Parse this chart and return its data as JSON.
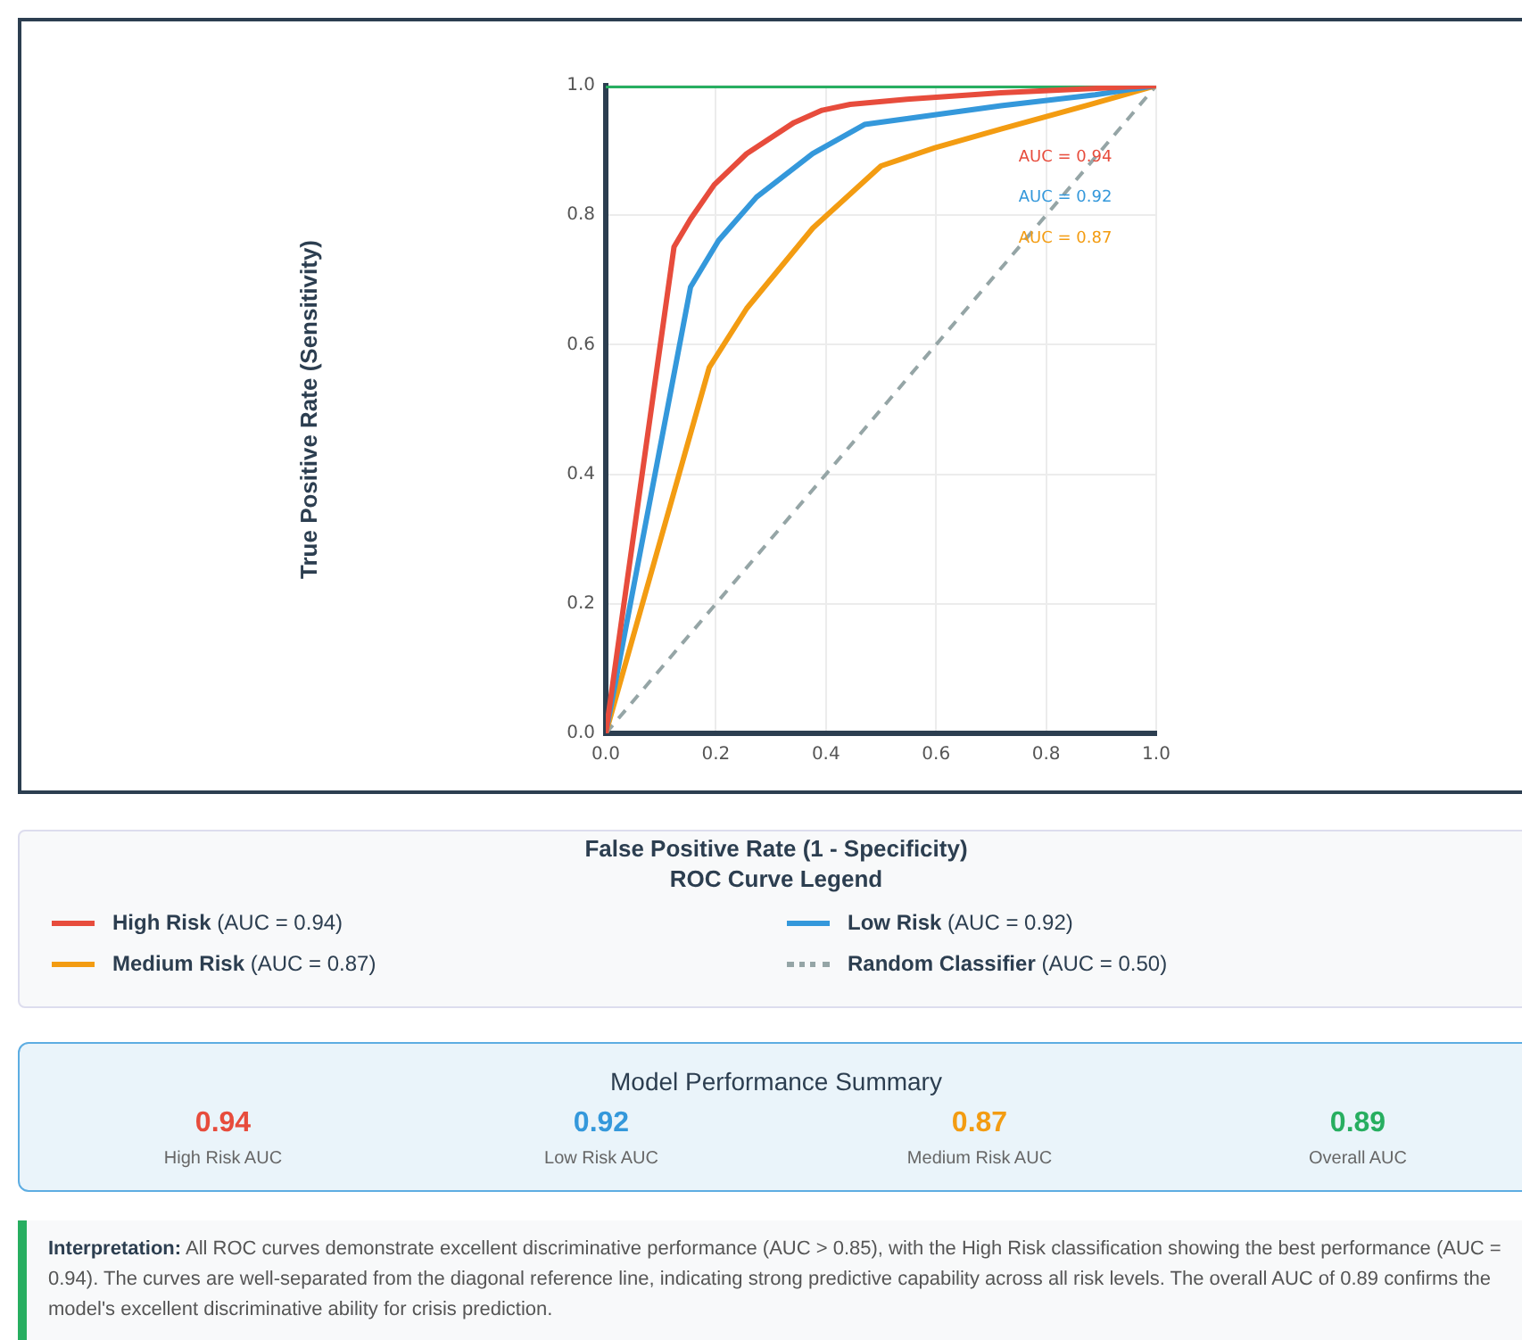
{
  "chart_data": [
    {
      "type": "line",
      "xlabel": "False Positive Rate (1 - Specificity)",
      "ylabel": "True Positive Rate (Sensitivity)",
      "legend_title": "ROC Curve Legend",
      "legend": "bottom",
      "grid": true,
      "marker": "none",
      "xlim": [
        0,
        1
      ],
      "ylim": [
        0,
        1
      ],
      "xticks": [
        {
          "value": 0,
          "label": "0.0"
        },
        0.2,
        0.4,
        0.6,
        0.8,
        {
          "value": 1,
          "label": "1.0"
        }
      ],
      "yticks": [
        {
          "value": 0,
          "label": "0.0"
        },
        0.2,
        0.4,
        0.6,
        0.8,
        {
          "value": 1,
          "label": "1.0"
        }
      ],
      "series": [
        {
          "name": "High Risk (AUC = 0.94)",
          "color": "#e74c3c",
          "x": [
            0,
            0.124,
            0.154,
            0.197,
            0.256,
            0.342,
            0.393,
            0.444,
            0.547,
            0.718,
            1
          ],
          "values": [
            0,
            0.751,
            0.794,
            0.847,
            0.895,
            0.943,
            0.962,
            0.971,
            0.979,
            0.989,
            1
          ]
        },
        {
          "name": "Low Risk (AUC = 0.92)",
          "color": "#3498db",
          "x": [
            0,
            0.154,
            0.205,
            0.274,
            0.376,
            0.47,
            0.547,
            0.718,
            0.889,
            1
          ],
          "values": [
            0,
            0.689,
            0.761,
            0.828,
            0.895,
            0.94,
            0.949,
            0.969,
            0.986,
            1
          ]
        },
        {
          "name": "Medium Risk (AUC = 0.87)",
          "color": "#f39c12",
          "x": [
            0,
            0.188,
            0.256,
            0.376,
            0.5,
            0.598,
            0.718,
            0.88,
            1
          ],
          "values": [
            0,
            0.565,
            0.656,
            0.78,
            0.876,
            0.904,
            0.933,
            0.971,
            1
          ]
        },
        {
          "name": "Random Classifier (AUC = 0.50)",
          "color": "#95a5a6",
          "line_style": "dashed",
          "x": [
            0,
            1
          ],
          "values": [
            0,
            1
          ]
        },
        {
          "color": "#27ae60",
          "x": [
            0,
            1
          ],
          "values": [
            1,
            1
          ]
        }
      ],
      "annotations": [
        "AUC = 0.94",
        "AUC = 0.92",
        "AUC = 0.87",
        "Interpretation: All ROC curves demonstrate excellent discriminative performance (AUC > 0.85), with the High Risk classification showing the best performance (AUC = 0.94). The curves are well-separated from the diagonal reference line, indicating strong predictive capability across all risk levels. The overall AUC of 0.89 confirms the model's excellent discriminative ability for crisis prediction."
      ]
    },
    {
      "type": "other",
      "title": "Model Performance Summary",
      "annotations": [
        "0.94",
        "High Risk AUC",
        "0.92",
        "Low Risk AUC",
        "0.87",
        "Medium Risk AUC",
        "0.89",
        "Overall AUC"
      ]
    }
  ]
}
